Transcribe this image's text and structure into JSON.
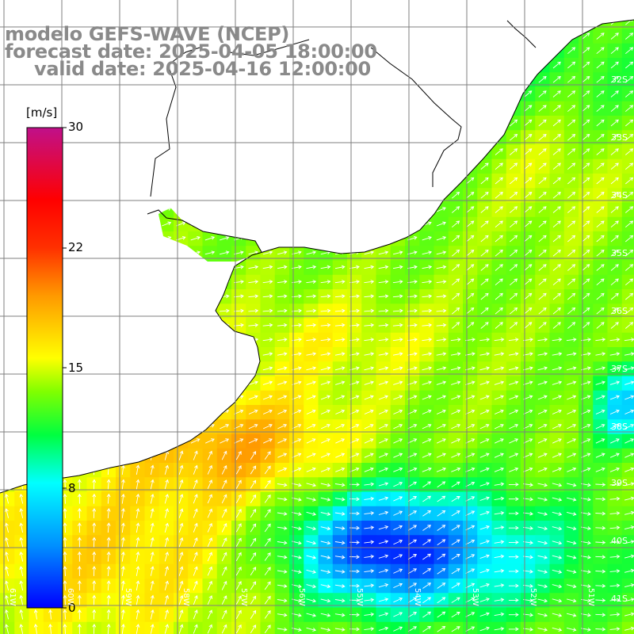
{
  "title": {
    "line1": "modelo GEFS-WAVE (NCEP)",
    "line2": "forecast date: 2025-04-05 18:00:00",
    "line3": "valid date: 2025-04-16 12:00:00"
  },
  "colorbar": {
    "unit": "[m/s]",
    "ticks": [
      "30",
      "22",
      "15",
      "8",
      "0"
    ]
  },
  "lat_labels": [
    "32S",
    "33S",
    "34S",
    "35S",
    "36S",
    "37S",
    "38S",
    "39S",
    "40S",
    "41S"
  ],
  "lon_labels": [
    "61W",
    "60W",
    "59W",
    "58W",
    "57W",
    "56W",
    "55W",
    "54W",
    "53W",
    "52W",
    "51W"
  ],
  "colors": {
    "land": "#ffffff",
    "grid": "#7f7f7f",
    "coast": "#000000",
    "arrows": "#ffffff",
    "title_text": "#8a8a8a"
  }
}
